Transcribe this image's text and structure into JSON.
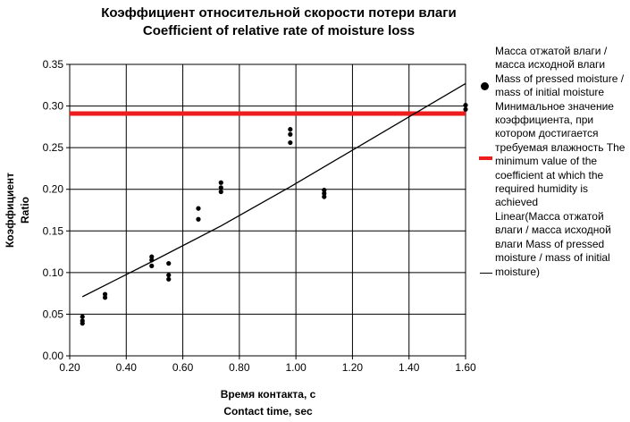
{
  "title_ru": "Коэффициент относительной скорости потери влаги",
  "title_en": "Coefficient of relative rate of moisture loss",
  "chart_data": {
    "type": "scatter",
    "xlabel_ru": "Время контакта, с",
    "xlabel_en": "Contact time, sec",
    "ylabel_ru": "Коэффициент",
    "ylabel_en": "Ratio",
    "xlim": [
      0.2,
      1.6
    ],
    "ylim": [
      0.0,
      0.35
    ],
    "x_ticks": [
      "0.20",
      "0.40",
      "0.60",
      "0.80",
      "1.00",
      "1.20",
      "1.40",
      "1.60"
    ],
    "y_ticks": [
      "0.00",
      "0.05",
      "0.10",
      "0.15",
      "0.20",
      "0.25",
      "0.30",
      "0.35"
    ],
    "grid": true,
    "legend_position": "right",
    "series": [
      {
        "name": "Масса отжатой влаги / масса исходной влаги Mass of pressed moisture / mass of initial moisture",
        "kind": "points",
        "color": "#000000",
        "points": [
          {
            "x": 0.245,
            "y": 0.047
          },
          {
            "x": 0.245,
            "y": 0.042
          },
          {
            "x": 0.245,
            "y": 0.039
          },
          {
            "x": 0.325,
            "y": 0.074
          },
          {
            "x": 0.325,
            "y": 0.07
          },
          {
            "x": 0.49,
            "y": 0.119
          },
          {
            "x": 0.49,
            "y": 0.115
          },
          {
            "x": 0.49,
            "y": 0.108
          },
          {
            "x": 0.55,
            "y": 0.111
          },
          {
            "x": 0.55,
            "y": 0.097
          },
          {
            "x": 0.55,
            "y": 0.092
          },
          {
            "x": 0.655,
            "y": 0.177
          },
          {
            "x": 0.655,
            "y": 0.164
          },
          {
            "x": 0.735,
            "y": 0.208
          },
          {
            "x": 0.735,
            "y": 0.202
          },
          {
            "x": 0.735,
            "y": 0.197
          },
          {
            "x": 0.98,
            "y": 0.272
          },
          {
            "x": 0.98,
            "y": 0.266
          },
          {
            "x": 0.98,
            "y": 0.256
          },
          {
            "x": 1.1,
            "y": 0.199
          },
          {
            "x": 1.1,
            "y": 0.195
          },
          {
            "x": 1.1,
            "y": 0.191
          },
          {
            "x": 1.6,
            "y": 0.301
          },
          {
            "x": 1.6,
            "y": 0.296
          }
        ]
      },
      {
        "name": "Минимальное значение коэффициента, при котором достигается требуемая влажность The minimum value of the coefficient at which the required humidity is achieved",
        "kind": "hline",
        "color": "#ee1c1c",
        "y": 0.291
      },
      {
        "name": "Linear(Масса отжатой влаги / масса исходной влаги Mass of pressed moisture / mass of initial moisture)",
        "kind": "line",
        "color": "#000000",
        "points": [
          {
            "x": 0.245,
            "y": 0.071
          },
          {
            "x": 0.49,
            "y": 0.113
          },
          {
            "x": 0.735,
            "y": 0.156
          },
          {
            "x": 0.98,
            "y": 0.203
          },
          {
            "x": 1.1,
            "y": 0.227
          },
          {
            "x": 1.6,
            "y": 0.327
          }
        ]
      }
    ]
  },
  "legend": {
    "item1": "Масса отжатой влаги / масса исходной влаги Mass of pressed moisture / mass of initial moisture",
    "item2": "Минимальное значение коэффициента, при котором достигается требуемая влажность The minimum value of the coefficient at which the required humidity is achieved",
    "item3": "Linear(Масса отжатой влаги / масса исходной влаги Mass of pressed moisture / mass of initial moisture)"
  }
}
